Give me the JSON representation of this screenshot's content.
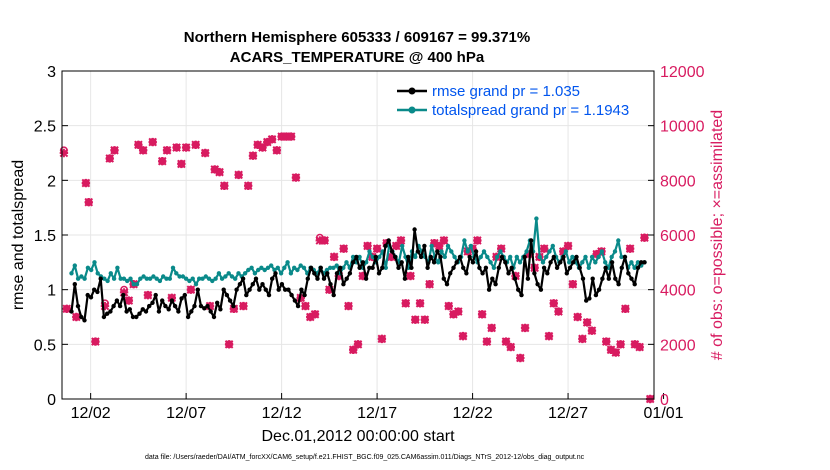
{
  "chart_data": {
    "type": "line",
    "title_line1": "Northern Hemisphere 605333 / 609167 = 99.371%",
    "title_line2": "ACARS_TEMPERATURE @ 400 hPa",
    "xlabel": "Dec.01,2012 00:00:00 start",
    "ylabel_left": "rmse and totalspread",
    "ylabel_right": "# of obs: o=possible; ×=assimilated",
    "xlim": [
      -0.5,
      30.5
    ],
    "ylim_left": [
      0,
      3
    ],
    "ylim_right": [
      0,
      12000
    ],
    "x_ticks": [
      1,
      6,
      11,
      16,
      21,
      26,
      31
    ],
    "x_tick_labels": [
      "12/02",
      "12/07",
      "12/12",
      "12/17",
      "12/22",
      "12/27",
      "01/01"
    ],
    "y_left_ticks": [
      "0",
      "0.5",
      "1",
      "1.5",
      "2",
      "2.5",
      "3"
    ],
    "y_right_ticks": [
      "0",
      "2000",
      "4000",
      "6000",
      "8000",
      "10000",
      "12000"
    ],
    "legend": [
      {
        "label": "rmse grand pr = 1.035",
        "color": "#000000"
      },
      {
        "label": "totalspread grand pr = 1.1943",
        "color": "#0a8a8a"
      }
    ],
    "footer": "data file: /Users/raeder/DAI/ATM_forcXX/CAM6_setup/f.e21.FHIST_BGC.f09_025.CAM6assim.011/Diags_NTrS_2012-12/obs_diag_output.nc",
    "colors": {
      "rmse": "#000000",
      "spread": "#0a8a8a",
      "obs": "#d81b60",
      "text_left": "#000000",
      "text_right": "#d81b60",
      "legend_text": "#0055ee",
      "grid": "#e6e6e6"
    },
    "rmse": [
      0.8,
      1.05,
      0.85,
      0.75,
      0.72,
      0.95,
      0.93,
      1.0,
      0.98,
      1.1,
      0.75,
      0.78,
      0.8,
      0.85,
      0.9,
      0.85,
      0.95,
      0.8,
      0.82,
      0.75,
      0.75,
      0.78,
      0.82,
      0.8,
      0.85,
      0.88,
      0.95,
      0.8,
      0.9,
      0.85,
      0.82,
      0.9,
      0.85,
      0.8,
      0.92,
      0.95,
      0.75,
      0.8,
      0.85,
      1.0,
      0.85,
      0.83,
      0.85,
      0.8,
      0.75,
      0.88,
      0.82,
      1.0,
      0.95,
      0.9,
      0.85,
      1.0,
      1.05,
      1.1,
      0.95,
      1.0,
      1.05,
      1.1,
      1.0,
      1.05,
      1.0,
      0.95,
      1.1,
      1.15,
      1.0,
      1.05,
      1.0,
      1.0,
      0.95,
      0.9,
      0.85,
      1.0,
      0.95,
      1.1,
      1.2,
      1.15,
      1.1,
      1.2,
      1.1,
      1.15,
      1.05,
      0.95,
      1.15,
      1.2,
      1.05,
      1.1,
      1.15,
      1.25,
      1.3,
      1.2,
      1.25,
      1.1,
      1.2,
      1.2,
      1.3,
      1.15,
      1.2,
      1.4,
      1.45,
      1.35,
      1.3,
      1.2,
      1.25,
      1.1,
      1.3,
      1.2,
      1.55,
      1.35,
      1.3,
      1.4,
      1.2,
      1.3,
      1.25,
      1.35,
      1.3,
      1.1,
      1.05,
      1.15,
      1.2,
      1.25,
      1.3,
      1.2,
      1.15,
      1.3,
      1.25,
      1.35,
      1.2,
      1.15,
      1.2,
      1.0,
      1.1,
      1.05,
      1.2,
      1.3,
      1.25,
      1.15,
      1.2,
      1.1,
      1.0,
      0.95,
      1.3,
      1.1,
      1.45,
      1.15,
      1.05,
      1.0,
      1.2,
      1.15,
      1.25,
      1.3,
      1.2,
      1.25,
      1.3,
      1.15,
      1.2,
      1.25,
      1.3,
      1.2,
      1.1,
      0.9,
      0.92,
      1.1,
      0.95,
      1.0,
      1.1,
      1.2,
      1.1,
      1.25,
      1.1,
      1.05,
      1.2,
      1.3,
      1.15,
      1.1,
      1.05,
      1.2,
      1.25,
      1.25
    ],
    "totalspread": [
      1.15,
      1.22,
      1.1,
      1.12,
      1.1,
      1.2,
      1.18,
      1.25,
      1.15,
      1.12,
      1.1,
      1.08,
      1.15,
      1.1,
      1.2,
      1.1,
      1.1,
      1.08,
      1.1,
      1.05,
      1.05,
      1.1,
      1.12,
      1.1,
      1.1,
      1.12,
      1.1,
      1.08,
      1.12,
      1.1,
      1.1,
      1.2,
      1.15,
      1.12,
      1.12,
      1.1,
      1.08,
      1.1,
      1.05,
      1.1,
      1.1,
      1.12,
      1.1,
      1.08,
      1.1,
      1.15,
      1.1,
      1.12,
      1.15,
      1.12,
      1.1,
      1.15,
      1.12,
      1.15,
      1.18,
      1.2,
      1.15,
      1.18,
      1.2,
      1.18,
      1.2,
      1.22,
      1.18,
      1.2,
      1.15,
      1.2,
      1.25,
      1.15,
      1.2,
      1.18,
      1.22,
      1.2,
      1.15,
      1.2,
      1.18,
      1.15,
      1.2,
      1.15,
      1.18,
      1.2,
      1.2,
      1.22,
      1.15,
      1.2,
      1.25,
      1.2,
      1.3,
      1.25,
      1.3,
      1.2,
      1.25,
      1.35,
      1.3,
      1.25,
      1.3,
      1.35,
      1.2,
      1.4,
      1.35,
      1.3,
      1.25,
      1.4,
      1.3,
      1.2,
      1.35,
      1.3,
      1.4,
      1.35,
      1.3,
      1.25,
      1.4,
      1.3,
      1.25,
      1.35,
      1.3,
      1.4,
      1.35,
      1.3,
      1.25,
      1.3,
      1.45,
      1.35,
      1.4,
      1.3,
      1.25,
      1.3,
      1.35,
      1.3,
      1.25,
      1.2,
      1.3,
      1.35,
      1.3,
      1.25,
      1.3,
      1.2,
      1.3,
      1.25,
      1.3,
      1.35,
      1.45,
      1.35,
      1.65,
      1.3,
      1.25,
      1.3,
      1.35,
      1.4,
      1.3,
      1.25,
      1.3,
      1.35,
      1.25,
      1.3,
      1.25,
      1.2,
      1.25,
      1.3,
      1.2,
      1.3,
      1.25,
      1.3,
      1.35,
      1.25,
      1.2,
      1.3,
      1.35,
      1.45,
      1.3,
      1.3,
      1.2,
      1.25,
      1.2,
      1.25,
      1.22,
      1.25
    ],
    "obs_x": [
      -0.4,
      -0.25,
      0.25,
      0.75,
      0.9,
      1.25,
      1.75,
      2.0,
      2.25,
      2.75,
      3.0,
      3.25,
      3.5,
      3.75,
      4.0,
      4.25,
      4.75,
      5.0,
      5.25,
      5.5,
      5.75,
      6.0,
      6.25,
      6.5,
      7.0,
      7.25,
      7.5,
      7.75,
      8.0,
      8.25,
      8.5,
      8.75,
      9.0,
      9.25,
      9.5,
      9.75,
      10.0,
      10.25,
      10.5,
      10.75,
      11.0,
      11.25,
      11.5,
      11.75,
      12.0,
      12.25,
      12.5,
      12.75,
      13.0,
      13.25,
      13.5,
      13.75,
      14.0,
      14.25,
      14.5,
      14.75,
      15.0,
      15.25,
      15.5,
      15.75,
      16.0,
      16.25,
      16.5,
      16.75,
      17.0,
      17.25,
      17.5,
      17.75,
      18.0,
      18.25,
      18.5,
      18.75,
      19.0,
      19.25,
      19.5,
      19.75,
      20.0,
      20.25,
      20.5,
      20.75,
      21.0,
      21.25,
      21.5,
      21.75,
      22.0,
      22.25,
      22.5,
      22.75,
      23.0,
      23.25,
      23.5,
      23.75,
      24.0,
      24.25,
      24.5,
      24.75,
      25.0,
      25.25,
      25.5,
      25.75,
      26.0,
      26.25,
      26.5,
      26.75,
      27.0,
      27.25,
      27.5,
      27.75,
      28.0,
      28.25,
      28.5,
      28.75,
      29.0,
      29.25,
      29.5,
      29.75,
      30.0,
      30.3
    ],
    "obs_n": [
      9100,
      3300,
      3000,
      7900,
      7200,
      2100,
      3500,
      8800,
      9100,
      4000,
      3600,
      4200,
      9300,
      9100,
      3800,
      9400,
      8700,
      9100,
      3700,
      9200,
      8600,
      9200,
      4000,
      9300,
      9000,
      3400,
      8400,
      8300,
      7800,
      2000,
      3300,
      8200,
      3400,
      7800,
      8900,
      9300,
      9200,
      9400,
      9500,
      9100,
      9600,
      9600,
      9600,
      8100,
      3700,
      3400,
      3000,
      3100,
      5900,
      5800,
      4000,
      5200,
      4500,
      5500,
      3400,
      1800,
      2000,
      4500,
      5600,
      5200,
      5500,
      2200,
      5700,
      5200,
      5600,
      5800,
      3500,
      4500,
      2900,
      3500,
      2900,
      4200,
      5700,
      5600,
      5800,
      3400,
      3100,
      3200,
      2300,
      5400,
      5500,
      5800,
      3100,
      2100,
      2600,
      5200,
      5500,
      2100,
      1900,
      4500,
      1500,
      2600,
      5300,
      4800,
      5200,
      5500,
      2300,
      3500,
      3200,
      5400,
      5600,
      4200,
      3000,
      2200,
      2800,
      2500,
      5300,
      5400,
      2100,
      1800,
      1700,
      2000,
      3300,
      5500,
      2000,
      1900,
      5900,
      0
    ],
    "obs_assim": [
      9000,
      3300,
      3000,
      7900,
      7200,
      2100,
      3400,
      8800,
      9100,
      3900,
      3600,
      4200,
      9300,
      9100,
      3800,
      9400,
      8700,
      9100,
      3700,
      9200,
      8600,
      9200,
      4000,
      9300,
      9000,
      3400,
      8400,
      8300,
      7800,
      2000,
      3300,
      8200,
      3400,
      7800,
      8900,
      9300,
      9200,
      9400,
      9500,
      9100,
      9600,
      9600,
      9600,
      8100,
      3700,
      3400,
      3000,
      3100,
      5800,
      5800,
      4000,
      5200,
      4500,
      5500,
      3400,
      1800,
      2000,
      4500,
      5600,
      5200,
      5500,
      2200,
      5700,
      5200,
      5600,
      5800,
      3500,
      4500,
      2900,
      3500,
      2900,
      4200,
      5700,
      5600,
      5800,
      3400,
      3100,
      3200,
      2300,
      5400,
      5500,
      5800,
      3100,
      2100,
      2600,
      5200,
      5500,
      2100,
      1900,
      4500,
      1500,
      2600,
      5300,
      4800,
      5200,
      5500,
      2300,
      3500,
      3200,
      5400,
      5600,
      4200,
      3000,
      2200,
      2800,
      2500,
      5300,
      5400,
      2100,
      1800,
      1700,
      2000,
      3300,
      5500,
      2000,
      1900,
      5900,
      0
    ]
  }
}
